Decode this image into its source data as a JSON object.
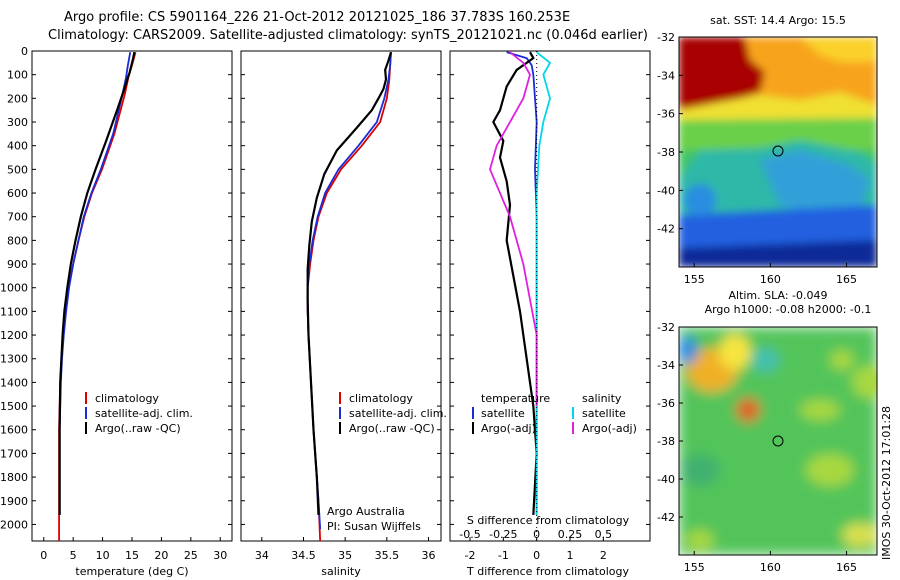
{
  "title": {
    "line1": "Argo profile: CS 5901164_226 21-Oct-2012 20121025_186 37.783S 160.253E",
    "line2": "Climatology: CARS2009. Satellite-adjusted climatology: synTS_20121021.nc (0.046d earlier)"
  },
  "map_titles": {
    "sst": "sat. SST: 14.4  Argo: 15.5",
    "sla1": "Altim. SLA: -0.049",
    "sla2": "Argo h1000: -0.08 h2000: -0.1"
  },
  "stamp": "IMOS 30-Oct-2012 17:01:28",
  "credit": {
    "line1": "Argo Australia",
    "line2": "PI: Susan Wijffels"
  },
  "colors": {
    "climatology": "#dd0000",
    "satellite": "#1a2bd8",
    "argo": "#000000",
    "sat_salinity": "#00d8e8",
    "argo_salinity": "#e020e0"
  },
  "depth_ticks": [
    "0",
    "100",
    "200",
    "300",
    "400",
    "500",
    "600",
    "700",
    "800",
    "900",
    "1000",
    "1100",
    "1200",
    "1300",
    "1400",
    "1500",
    "1600",
    "1700",
    "1800",
    "1900",
    "2000"
  ],
  "chart_data": [
    {
      "type": "line",
      "xlabel": "temperature (deg C)",
      "ylabel": "",
      "xlim": [
        -2,
        32
      ],
      "ylim": [
        2070,
        0
      ],
      "xticks": [
        "0",
        "5",
        "10",
        "15",
        "20",
        "25",
        "30"
      ],
      "legend": [
        "climatology",
        "satellite-adj. clim.",
        "Argo(..raw -QC)"
      ],
      "legend_position": "lower-right",
      "series": [
        {
          "name": "climatology",
          "x": [
            15.6,
            15.0,
            14.4,
            13.8,
            12.0,
            9.9,
            8.2,
            6.9,
            5.9,
            5.0,
            4.2,
            3.7,
            3.3,
            3.0,
            2.8,
            2.6,
            2.6
          ],
          "y": [
            5,
            60,
            110,
            180,
            350,
            500,
            600,
            700,
            800,
            900,
            1000,
            1100,
            1200,
            1300,
            1400,
            1600,
            2070
          ]
        },
        {
          "name": "satellite-adj. clim.",
          "x": [
            14.7,
            14.3,
            14.0,
            13.4,
            11.8,
            9.7,
            8.1,
            6.8,
            5.9,
            5.0,
            4.3,
            3.8,
            3.4,
            3.1,
            2.9,
            2.7,
            2.7
          ],
          "y": [
            5,
            60,
            110,
            180,
            350,
            500,
            600,
            700,
            800,
            900,
            1000,
            1100,
            1200,
            1300,
            1400,
            1600,
            1960
          ]
        },
        {
          "name": "Argo(..raw -QC)",
          "x": [
            15.4,
            15.2,
            14.9,
            14.6,
            14.2,
            13.7,
            12.6,
            10.6,
            8.8,
            7.4,
            6.3,
            5.4,
            4.6,
            4.0,
            3.5,
            3.2,
            3.0,
            2.8,
            2.7,
            2.7
          ],
          "y": [
            5,
            30,
            60,
            90,
            120,
            160,
            240,
            380,
            500,
            600,
            700,
            800,
            900,
            1000,
            1100,
            1200,
            1300,
            1400,
            1600,
            1960
          ]
        }
      ]
    },
    {
      "type": "line",
      "xlabel": "salinity",
      "xlim": [
        33.75,
        36.15
      ],
      "ylim": [
        2070,
        0
      ],
      "xticks": [
        "34",
        "34.5",
        "35",
        "35.5",
        "36"
      ],
      "legend": [
        "climatology",
        "satellite-adj. clim.",
        "Argo(..raw -QC)"
      ],
      "legend_position": "lower-right",
      "series": [
        {
          "name": "climatology",
          "x": [
            35.55,
            35.54,
            35.53,
            35.5,
            35.42,
            35.2,
            34.95,
            34.78,
            34.68,
            34.62,
            34.58,
            34.55,
            34.55,
            34.56,
            34.59,
            34.62,
            34.66,
            34.68,
            34.7
          ],
          "y": [
            5,
            60,
            120,
            200,
            300,
            400,
            500,
            600,
            700,
            800,
            900,
            1000,
            1100,
            1200,
            1400,
            1600,
            1800,
            1900,
            2070
          ]
        },
        {
          "name": "satellite-adj. clim.",
          "x": [
            35.55,
            35.54,
            35.52,
            35.47,
            35.38,
            35.16,
            34.92,
            34.76,
            34.67,
            34.61,
            34.57,
            34.55,
            34.55,
            34.56,
            34.59,
            34.62,
            34.66,
            34.68,
            34.7
          ],
          "y": [
            5,
            60,
            120,
            200,
            300,
            400,
            500,
            600,
            700,
            800,
            900,
            1000,
            1100,
            1200,
            1400,
            1600,
            1800,
            1900,
            2020
          ]
        },
        {
          "name": "Argo(..raw -QC)",
          "x": [
            35.55,
            35.52,
            35.48,
            35.49,
            35.46,
            35.4,
            35.32,
            35.15,
            34.9,
            34.75,
            34.66,
            34.6,
            34.57,
            34.55,
            34.55,
            34.56,
            34.59,
            34.62,
            34.66,
            34.68
          ],
          "y": [
            5,
            40,
            80,
            120,
            160,
            200,
            250,
            320,
            420,
            520,
            620,
            720,
            820,
            920,
            1050,
            1200,
            1400,
            1600,
            1800,
            1960
          ]
        }
      ]
    },
    {
      "type": "line",
      "xlabel": "T difference from climatology",
      "xlabel_top": "S difference from climatology",
      "xlim": [
        -2.6,
        3.4
      ],
      "ylim": [
        2070,
        0
      ],
      "xticks": [
        "-2",
        "-1",
        "0",
        "1",
        "2"
      ],
      "xticks_top": [
        "-0.5",
        "-0.25",
        "0",
        "0.25",
        "0.5"
      ],
      "legend": [
        "temperature",
        "satellite",
        "Argo(-adj)",
        "salinity",
        "satellite",
        "Argo(-adj)"
      ],
      "legend_position": "lower-center",
      "series": [
        {
          "name": "satellite",
          "x": [
            -0.9,
            -0.3,
            -0.15,
            -0.1,
            -0.05,
            0,
            -0.05,
            0,
            0,
            0,
            0,
            0,
            0
          ],
          "y": [
            5,
            30,
            60,
            100,
            200,
            300,
            500,
            700,
            900,
            1200,
            1500,
            1800,
            1960
          ]
        },
        {
          "name": "Argo(-adj)",
          "x": [
            -0.2,
            -0.1,
            -0.6,
            -0.9,
            -1.1,
            -1.3,
            -1.0,
            -1.1,
            -0.9,
            -0.8,
            -0.9,
            -0.7,
            -0.5,
            -0.3,
            -0.1,
            0.0,
            -0.1
          ],
          "y": [
            5,
            30,
            80,
            150,
            250,
            300,
            380,
            450,
            550,
            650,
            800,
            950,
            1100,
            1300,
            1500,
            1700,
            1960
          ]
        },
        {
          "name": "satellite",
          "x": [
            0.0,
            0.1,
            0.05,
            0.1,
            0.05,
            0.02,
            0.0,
            0.0,
            0.0,
            0.0,
            0.0,
            0.0
          ],
          "y": [
            5,
            50,
            100,
            200,
            300,
            400,
            600,
            800,
            1000,
            1400,
            1700,
            1960
          ]
        },
        {
          "name": "Argo(-adj)",
          "x": [
            -0.2,
            -0.1,
            -0.05,
            -0.1,
            -0.2,
            -0.3,
            -0.35,
            -0.2,
            -0.1,
            0.0,
            0.0
          ],
          "y": [
            5,
            50,
            100,
            200,
            300,
            400,
            500,
            700,
            900,
            1200,
            1500
          ]
        }
      ]
    }
  ],
  "maps": {
    "sst": {
      "xticks": [
        "155",
        "160",
        "165"
      ],
      "yticks": [
        "-32",
        "-34",
        "-36",
        "-38",
        "-40",
        "-42"
      ],
      "xlim": [
        154,
        167
      ],
      "ylim": [
        -44,
        -32
      ]
    },
    "sla": {
      "xticks": [
        "155",
        "160",
        "165"
      ],
      "yticks": [
        "-32",
        "-34",
        "-36",
        "-38",
        "-40",
        "-42"
      ],
      "xlim": [
        154,
        167
      ],
      "ylim": [
        -44,
        -32
      ]
    },
    "float_position": {
      "lon": 160.253,
      "lat": -37.783
    }
  }
}
